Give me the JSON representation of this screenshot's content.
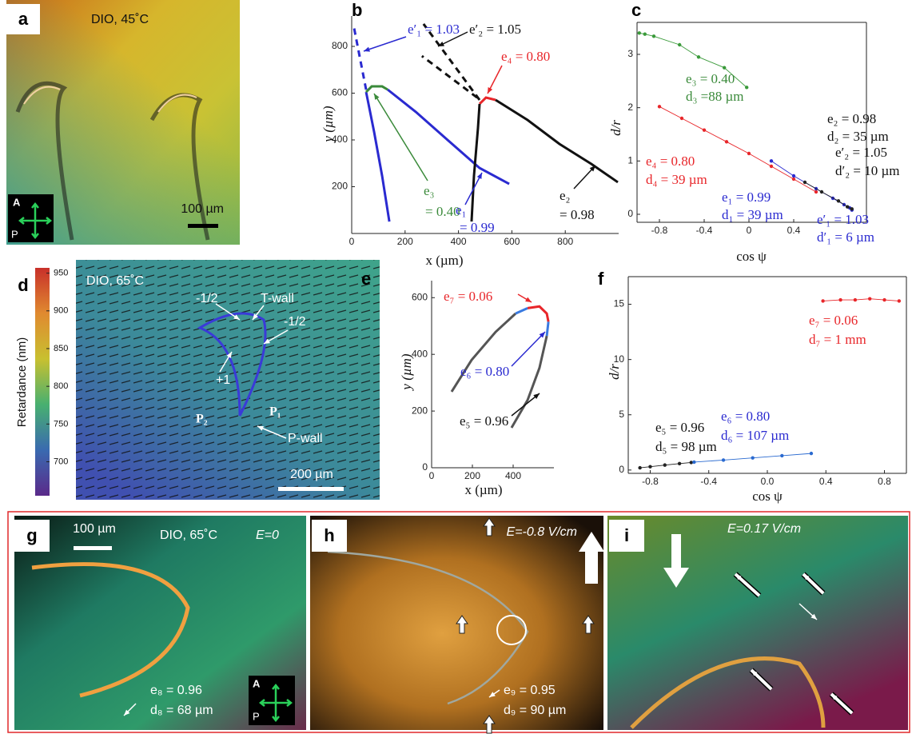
{
  "chart_data": [
    {
      "type": "line",
      "label": "b",
      "xlabel": "x (µm)",
      "ylabel": "y (µm)",
      "xlim": [
        0,
        1000
      ],
      "ylim": [
        0,
        930
      ],
      "xticks": [
        0,
        200,
        400,
        600,
        800
      ],
      "yticks": [
        200,
        400,
        600,
        800
      ],
      "series": [
        {
          "color": "#2a2ad0",
          "style": "solid",
          "x": [
            141,
            114,
            84,
            60,
            54
          ],
          "values": [
            51,
            246,
            434,
            571,
            605
          ]
        },
        {
          "color": "#3a8a3a",
          "style": "solid",
          "x": [
            54,
            75,
            114,
            135
          ],
          "values": [
            605,
            629,
            629,
            615
          ]
        },
        {
          "color": "#2a2ad0",
          "style": "solid",
          "x": [
            135,
            240,
            359,
            479,
            590
          ],
          "values": [
            615,
            520,
            400,
            280,
            212
          ]
        },
        {
          "color": "#2a2ad0",
          "style": "dashed",
          "x": [
            54,
            6
          ],
          "values": [
            615,
            896
          ]
        },
        {
          "color": "#e8262a",
          "style": "solid",
          "x": [
            479,
            503,
            539
          ],
          "values": [
            554,
            581,
            571
          ]
        },
        {
          "color": "#111111",
          "style": "solid",
          "x": [
            449,
            458,
            473,
            479
          ],
          "values": [
            51,
            246,
            451,
            554
          ]
        },
        {
          "color": "#111111",
          "style": "solid",
          "x": [
            539,
            659,
            778,
            898,
            997
          ],
          "values": [
            571,
            485,
            383,
            297,
            219
          ]
        },
        {
          "color": "#111111",
          "style": "dashed",
          "x": [
            479,
            269
          ],
          "values": [
            571,
            896
          ]
        },
        {
          "color": "#111111",
          "style": "dashed",
          "x": [
            470,
            263
          ],
          "values": [
            581,
            759
          ]
        }
      ],
      "annotations": [
        {
          "text": "e′₁ = 1.03",
          "color": "#2a2ad0"
        },
        {
          "text": "e′₂ = 1.05",
          "color": "#111111"
        },
        {
          "text": "e₄ = 0.80",
          "color": "#e8262a"
        },
        {
          "text": "e₃",
          "color": "#3a8a3a"
        },
        {
          "text": "= 0.40",
          "color": "#3a8a3a"
        },
        {
          "text": "e₁",
          "color": "#2a2ad0"
        },
        {
          "text": "= 0.99",
          "color": "#2a2ad0"
        },
        {
          "text": "e₂",
          "color": "#111111"
        },
        {
          "text": "= 0.98",
          "color": "#111111"
        }
      ]
    },
    {
      "type": "scatter",
      "label": "c",
      "xlabel": "cos ψ",
      "ylabel": "d/r",
      "frame": true,
      "xlim": [
        -1.0,
        1.05
      ],
      "ylim": [
        -0.15,
        3.6
      ],
      "xticks": [
        -0.8,
        -0.4,
        0,
        0.4
      ],
      "yticks": [
        0,
        1,
        2,
        3
      ],
      "series": [
        {
          "color": "#3a9a3a",
          "x": [
            -0.98,
            -0.93,
            -0.85,
            -0.62,
            -0.45,
            -0.22,
            -0.02
          ],
          "values": [
            3.4,
            3.38,
            3.34,
            3.18,
            2.95,
            2.75,
            2.38
          ]
        },
        {
          "color": "#e8262a",
          "x": [
            -0.8,
            -0.6,
            -0.4,
            -0.2,
            0,
            0.2,
            0.4,
            0.6
          ],
          "values": [
            2.02,
            1.8,
            1.58,
            1.36,
            1.14,
            0.9,
            0.66,
            0.42
          ]
        },
        {
          "color": "#2a2ad0",
          "x": [
            0.2,
            0.4,
            0.6,
            0.75,
            0.85,
            0.9,
            0.92
          ],
          "values": [
            1.0,
            0.72,
            0.48,
            0.3,
            0.18,
            0.12,
            0.08
          ]
        },
        {
          "color": "#222222",
          "x": [
            0.5,
            0.65,
            0.8,
            0.88,
            0.92
          ],
          "values": [
            0.6,
            0.42,
            0.25,
            0.14,
            0.1
          ]
        }
      ],
      "annotations": [
        {
          "text": "e₃ = 0.40",
          "color": "#3a8a3a"
        },
        {
          "text": "d₃ =88 µm",
          "color": "#3a8a3a"
        },
        {
          "text": "e₂ = 0.98",
          "color": "#111111"
        },
        {
          "text": "d₂ = 35 µm",
          "color": "#111111"
        },
        {
          "text": "e₄ = 0.80",
          "color": "#e8262a"
        },
        {
          "text": "d₄ = 39 µm",
          "color": "#e8262a"
        },
        {
          "text": "e′₂ = 1.05",
          "color": "#111111"
        },
        {
          "text": "d′₂ = 10 µm",
          "color": "#111111"
        },
        {
          "text": "e₁ = 0.99",
          "color": "#2a2ad0"
        },
        {
          "text": "d₁ = 39 µm",
          "color": "#2a2ad0"
        },
        {
          "text": "e′₁ = 1.03",
          "color": "#2a2ad0"
        },
        {
          "text": "d′₁ = 6 µm",
          "color": "#2a2ad0"
        }
      ]
    },
    {
      "type": "line",
      "label": "e",
      "xlabel": "x (µm)",
      "ylabel": "y (µm)",
      "xlim": [
        0,
        600
      ],
      "ylim": [
        0,
        660
      ],
      "xticks": [
        0,
        200,
        400
      ],
      "yticks": [
        0,
        200,
        400,
        600
      ],
      "series": [
        {
          "color": "#555555",
          "style": "solid",
          "x": [
            98,
            196,
            314,
            412
          ],
          "values": [
            268,
            380,
            479,
            544
          ]
        },
        {
          "color": "#3a7ae0",
          "style": "solid",
          "x": [
            412,
            471
          ],
          "values": [
            544,
            563
          ]
        },
        {
          "color": "#e8262a",
          "style": "solid",
          "x": [
            471,
            529,
            565,
            573
          ],
          "values": [
            563,
            569,
            544,
            515
          ]
        },
        {
          "color": "#3a7ae0",
          "style": "solid",
          "x": [
            573,
            565
          ],
          "values": [
            515,
            465
          ]
        },
        {
          "color": "#555555",
          "style": "solid",
          "x": [
            565,
            529,
            471,
            392
          ],
          "values": [
            465,
            352,
            239,
            141
          ]
        }
      ],
      "annotations": [
        {
          "text": "e₇ = 0.06",
          "color": "#e8262a"
        },
        {
          "text": "e₆ = 0.80",
          "color": "#2a2ad0"
        },
        {
          "text": "e₅ = 0.96",
          "color": "#111111"
        }
      ]
    },
    {
      "type": "scatter",
      "label": "f",
      "xlabel": "cos ψ",
      "ylabel": "d/r",
      "frame": true,
      "xlim": [
        -0.95,
        0.95
      ],
      "ylim": [
        -0.3,
        17.5
      ],
      "xticks": [
        -0.8,
        -0.4,
        {
          "value": 0,
          "label": "0.0"
        },
        0.4,
        0.8
      ],
      "yticks": [
        0,
        5,
        10,
        15
      ],
      "series": [
        {
          "color": "#222222",
          "x": [
            -0.87,
            -0.8,
            -0.7,
            -0.6,
            -0.52
          ],
          "values": [
            0.2,
            0.3,
            0.45,
            0.58,
            0.68
          ]
        },
        {
          "color": "#2a6ad0",
          "x": [
            -0.5,
            -0.3,
            -0.1,
            0.1,
            0.3
          ],
          "values": [
            0.72,
            0.9,
            1.1,
            1.3,
            1.5
          ]
        },
        {
          "color": "#e8262a",
          "x": [
            0.38,
            0.5,
            0.6,
            0.7,
            0.8,
            0.9
          ],
          "values": [
            15.3,
            15.4,
            15.4,
            15.5,
            15.4,
            15.3
          ]
        }
      ],
      "annotations": [
        {
          "text": "e₇ = 0.06",
          "color": "#e8262a"
        },
        {
          "text": "d₇ = 1 mm",
          "color": "#e8262a"
        },
        {
          "text": "e₅ = 0.96",
          "color": "#111111"
        },
        {
          "text": "d₅ = 98 µm",
          "color": "#111111"
        },
        {
          "text": "e₆ = 0.80",
          "color": "#2a2ad0"
        },
        {
          "text": "d₆ = 107 µm",
          "color": "#2a2ad0"
        }
      ]
    }
  ],
  "figure": {
    "a": {
      "label": "a",
      "caption": "DIO, 45˚C",
      "scale_bar": "100 µm",
      "analyzer": "A",
      "polarizer": "P"
    },
    "d": {
      "label": "d",
      "caption": "DIO, 65˚C",
      "colorbar_label": "Retardance (nm)",
      "colorbar_lim": [
        655,
        957
      ],
      "colorbar_ticks": [
        950,
        900,
        850,
        800,
        750,
        700
      ],
      "annotations": [
        "-1/2",
        "T-wall",
        "-1/2",
        "+1",
        "P₂",
        "P₁",
        "P-wall"
      ],
      "scale_bar": "200 µm"
    },
    "g": {
      "label": "g",
      "scale_bar": "100 µm",
      "caption": "DIO, 65˚C",
      "field": "E=0",
      "annotations": [
        "e₈ = 0.96",
        "d₈ = 68 µm"
      ],
      "analyzer": "A",
      "polarizer": "P"
    },
    "h": {
      "label": "h",
      "field": "E=-0.8 V/cm",
      "annotations": [
        "e₉ = 0.95",
        "d₉ = 90 µm"
      ]
    },
    "i": {
      "label": "i",
      "field": "E=0.17 V/cm"
    }
  }
}
